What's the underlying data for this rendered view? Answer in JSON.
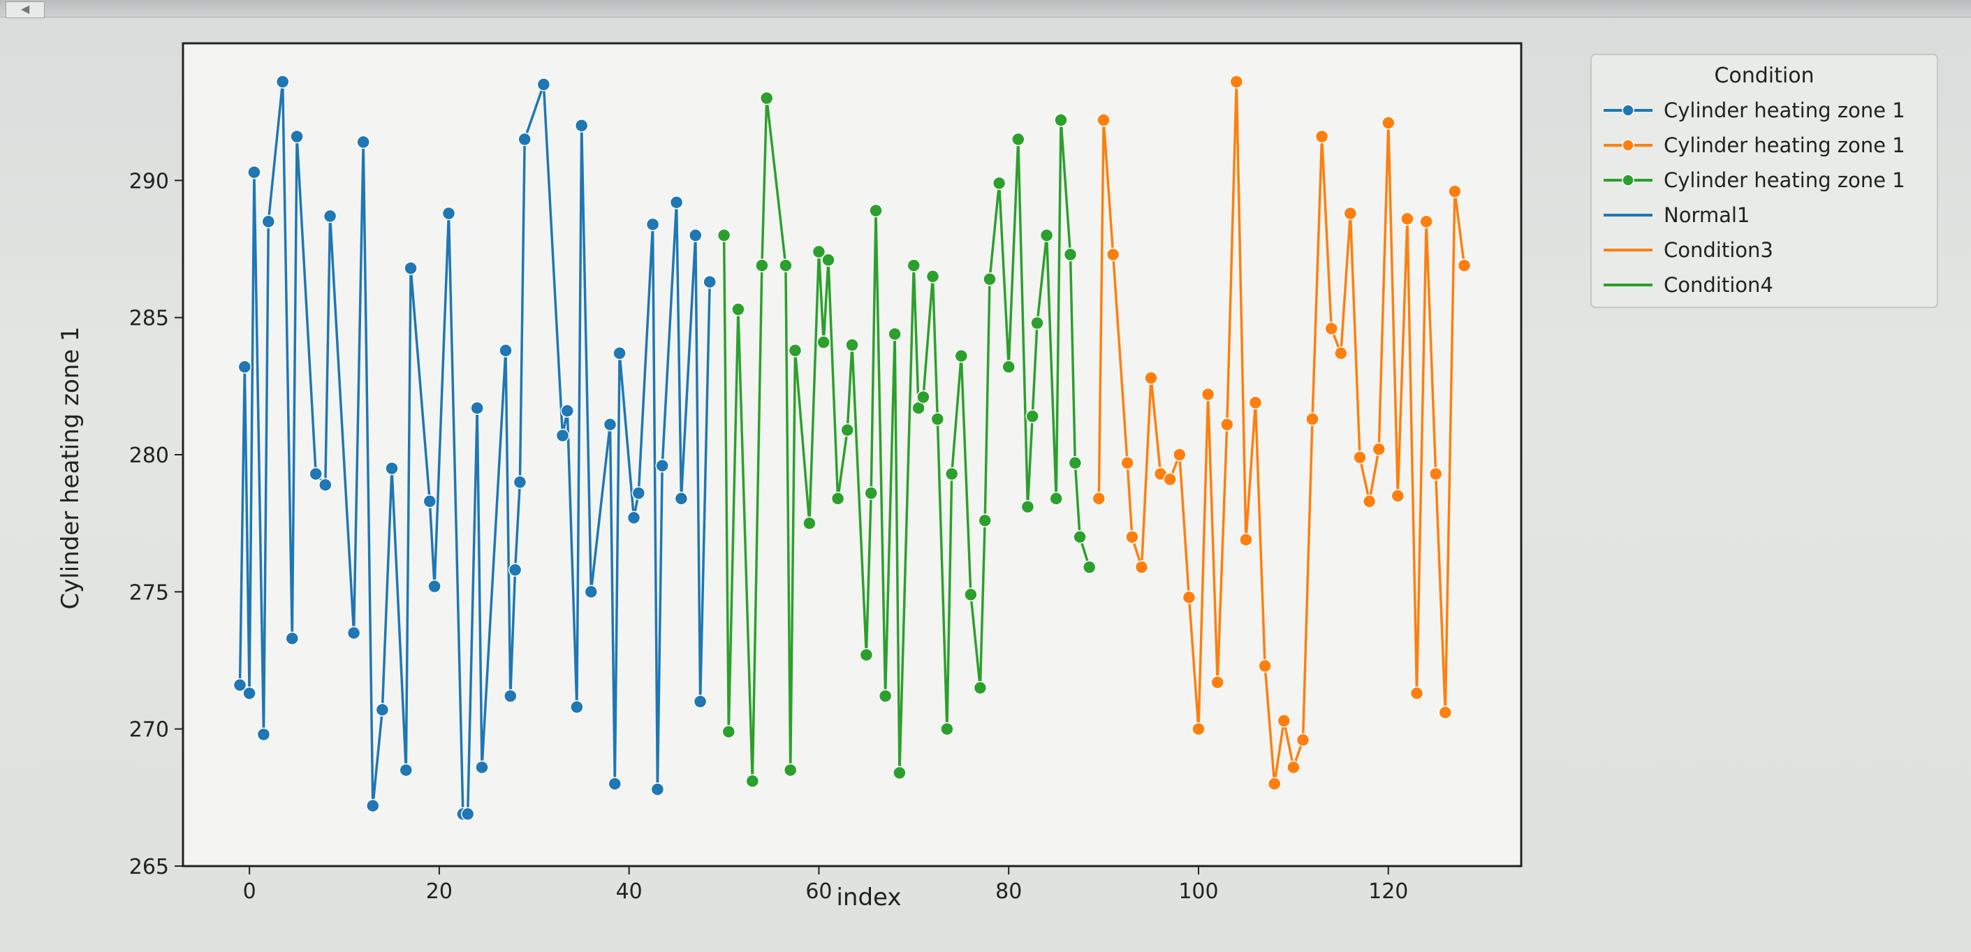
{
  "chart_data": {
    "type": "line",
    "xlabel": "index",
    "ylabel": "Cylinder heating zone 1",
    "xlim": [
      -7,
      134
    ],
    "ylim": [
      265,
      295
    ],
    "xticks": [
      0,
      20,
      40,
      60,
      80,
      100,
      120
    ],
    "yticks": [
      265,
      270,
      275,
      280,
      285,
      290
    ],
    "legend": {
      "title": "Condition",
      "placement": "outside-right",
      "entries": [
        {
          "label": "Cylinder heating zone 1",
          "color": "#1f77b4",
          "marker": true
        },
        {
          "label": "Cylinder heating zone 1",
          "color": "#ff7f0e",
          "marker": true
        },
        {
          "label": "Cylinder heating zone 1",
          "color": "#2ca02c",
          "marker": true
        },
        {
          "label": "Normal1",
          "color": "#1f77b4",
          "marker": false
        },
        {
          "label": "Condition3",
          "color": "#ff7f0e",
          "marker": false
        },
        {
          "label": "Condition4",
          "color": "#2ca02c",
          "marker": false
        }
      ]
    },
    "series": [
      {
        "color": "#1f77b4",
        "x": [
          -1,
          -0.5,
          0,
          0.5,
          1.5,
          2,
          3.5,
          4.5,
          5,
          7,
          8,
          8.5,
          11,
          12,
          13,
          14,
          15,
          16.5,
          17,
          19,
          19.5,
          21,
          22.5,
          23,
          24,
          24.5,
          27,
          27.5,
          28,
          28.5,
          29,
          31,
          33,
          33.5,
          34.5,
          35,
          36,
          38,
          38.5,
          39,
          40.5,
          41,
          42.5,
          43,
          43.5,
          45,
          45.5,
          47,
          47.5,
          48.5
        ],
        "y": [
          271.6,
          283.2,
          271.3,
          290.3,
          269.8,
          288.5,
          293.6,
          273.3,
          291.6,
          279.3,
          278.9,
          288.7,
          273.5,
          291.4,
          267.2,
          270.7,
          279.5,
          268.5,
          286.8,
          278.3,
          275.2,
          288.8,
          266.9,
          266.9,
          281.7,
          268.6,
          283.8,
          271.2,
          275.8,
          279.0,
          291.5,
          293.5,
          280.7,
          281.6,
          270.8,
          292.0,
          275.0,
          281.1,
          268.0,
          283.7,
          277.7,
          278.6,
          288.4,
          267.8,
          279.6,
          289.2,
          278.4,
          288.0,
          271.0,
          286.3
        ]
      },
      {
        "color": "#2ca02c",
        "x": [
          50,
          50.5,
          51.5,
          53,
          54,
          54.5,
          56.5,
          57,
          57.5,
          59,
          60,
          60.5,
          61,
          62,
          63,
          63.5,
          65,
          65.5,
          66,
          67,
          68,
          68.5,
          70,
          70.5,
          71,
          72,
          72.5,
          73.5,
          74,
          75,
          76,
          77,
          77.5,
          78,
          79,
          80,
          81,
          82,
          82.5,
          83,
          84,
          85,
          85.5,
          86.5,
          87,
          87.5,
          88.5
        ],
        "y": [
          288.0,
          269.9,
          285.3,
          268.1,
          286.9,
          293.0,
          286.9,
          268.5,
          283.8,
          277.5,
          287.4,
          284.1,
          287.1,
          278.4,
          280.9,
          284.0,
          272.7,
          278.6,
          288.9,
          271.2,
          284.4,
          268.4,
          286.9,
          281.7,
          282.1,
          286.5,
          281.3,
          270.0,
          279.3,
          283.6,
          274.9,
          271.5,
          277.6,
          286.4,
          289.9,
          283.2,
          291.5,
          278.1,
          281.4,
          284.8,
          288.0,
          278.4,
          292.2,
          287.3,
          279.7,
          277.0,
          275.9
        ]
      },
      {
        "color": "#ff7f0e",
        "x": [
          89.5,
          90,
          91,
          92.5,
          93,
          94,
          95,
          96,
          97,
          98,
          99,
          100,
          101,
          102,
          103,
          104,
          105,
          106,
          107,
          108,
          109,
          110,
          111,
          112,
          113,
          114,
          115,
          116,
          117,
          118,
          119,
          120,
          121,
          122,
          123,
          124,
          125,
          126,
          127,
          128
        ],
        "y": [
          278.4,
          292.2,
          287.3,
          279.7,
          277.0,
          275.9,
          282.8,
          279.3,
          279.1,
          280.0,
          274.8,
          270.0,
          282.2,
          271.7,
          281.1,
          293.6,
          276.9,
          281.9,
          272.3,
          268.0,
          270.3,
          268.6,
          269.6,
          281.3,
          291.6,
          284.6,
          283.7,
          288.8,
          279.9,
          278.3,
          280.2,
          292.1,
          278.5,
          288.6,
          271.3,
          288.5,
          279.3,
          270.6,
          289.6,
          286.9
        ]
      }
    ]
  }
}
